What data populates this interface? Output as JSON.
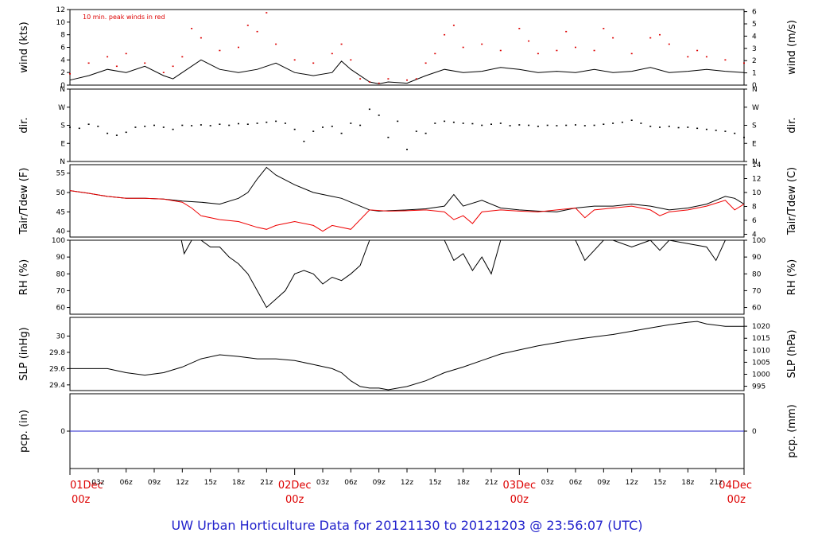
{
  "figure": {
    "caption": "UW Urban Horticulture Data for 20121130  to  20121203 @ 23:56:07  (UTC)",
    "colors": {
      "caption": "#2222cc",
      "date_labels": "#dd0000",
      "peak": "#dd0000",
      "dew": "#ee0000",
      "pcp": "#2222cc",
      "line": "#000000"
    }
  },
  "chart_data": [
    {
      "id": "wind",
      "type": "line",
      "ylabel": "wind (kts)",
      "ylabel_right": "wind (m/s)",
      "annotation": "10 min. peak winds in red",
      "ylim": [
        0,
        12
      ],
      "yticks": [
        0,
        2,
        4,
        6,
        8,
        10,
        12
      ],
      "right_ylim": [
        0,
        6.17
      ],
      "right_yticks": [
        0,
        1,
        2,
        3,
        4,
        5,
        6
      ],
      "series": [
        {
          "style": "line",
          "color": "#000000",
          "x": [
            0,
            2,
            4,
            6,
            8,
            10,
            11,
            12,
            14,
            16,
            18,
            20,
            22,
            24,
            26,
            28,
            29,
            30,
            32,
            33,
            34,
            36,
            38,
            40,
            42,
            44,
            46,
            48,
            50,
            52,
            54,
            56,
            58,
            60,
            62,
            64,
            66,
            68,
            70,
            72
          ],
          "y": [
            0.8,
            1.5,
            2.5,
            2.0,
            3.0,
            1.5,
            1.0,
            2.0,
            4.0,
            2.5,
            2.0,
            2.5,
            3.5,
            2.0,
            1.5,
            2.0,
            3.8,
            2.5,
            0.5,
            0.2,
            0.5,
            0.3,
            1.5,
            2.5,
            2.0,
            2.2,
            2.8,
            2.5,
            2.0,
            2.2,
            2.0,
            2.5,
            2.0,
            2.2,
            2.8,
            2.0,
            2.2,
            2.5,
            2.2,
            2.0
          ]
        },
        {
          "style": "dots",
          "color": "#dd0000",
          "x": [
            0,
            2,
            4,
            5,
            6,
            8,
            10,
            11,
            12,
            13,
            14,
            16,
            18,
            19,
            20,
            21,
            22,
            24,
            26,
            28,
            29,
            30,
            31,
            32,
            33,
            34,
            36,
            37,
            38,
            39,
            40,
            41,
            42,
            44,
            46,
            48,
            49,
            50,
            52,
            53,
            54,
            56,
            57,
            58,
            60,
            62,
            63,
            64,
            66,
            67,
            68,
            70,
            72
          ],
          "y": [
            1.8,
            3.5,
            4.5,
            3.0,
            5.0,
            3.5,
            2.0,
            3.0,
            4.5,
            9.0,
            7.5,
            5.5,
            6.0,
            9.5,
            8.5,
            11.5,
            6.5,
            4.0,
            3.5,
            5.0,
            6.5,
            4.0,
            1.0,
            0.5,
            0.3,
            1.0,
            0.8,
            1.0,
            3.5,
            5.0,
            8.0,
            9.5,
            6.0,
            6.5,
            5.5,
            9.0,
            7.0,
            5.0,
            5.5,
            8.5,
            6.0,
            5.5,
            9.0,
            7.5,
            5.0,
            7.5,
            8.0,
            6.5,
            4.5,
            5.5,
            4.5,
            4.0,
            3.5
          ]
        }
      ]
    },
    {
      "id": "dir",
      "type": "scatter",
      "ylabel": "dir.",
      "ylabel_right": "dir.",
      "ylim": [
        0,
        360
      ],
      "yticks": [
        0,
        90,
        180,
        270,
        360
      ],
      "ytick_labels": [
        "N",
        "E",
        "S",
        "W",
        "N"
      ],
      "series": [
        {
          "style": "dots",
          "color": "#000000",
          "x": [
            0,
            1,
            2,
            3,
            4,
            5,
            6,
            7,
            8,
            9,
            10,
            11,
            12,
            13,
            14,
            15,
            16,
            17,
            18,
            19,
            20,
            21,
            22,
            23,
            24,
            25,
            26,
            27,
            28,
            29,
            30,
            31,
            32,
            33,
            34,
            35,
            36,
            37,
            38,
            39,
            40,
            41,
            42,
            43,
            44,
            45,
            46,
            47,
            48,
            49,
            50,
            51,
            52,
            53,
            54,
            55,
            56,
            57,
            58,
            59,
            60,
            61,
            62,
            63,
            64,
            65,
            66,
            67,
            68,
            69,
            70,
            71,
            72
          ],
          "y": [
            170,
            165,
            185,
            175,
            140,
            130,
            145,
            170,
            175,
            180,
            170,
            160,
            180,
            178,
            182,
            178,
            185,
            180,
            188,
            185,
            190,
            195,
            200,
            190,
            160,
            100,
            150,
            170,
            175,
            140,
            190,
            180,
            260,
            230,
            120,
            200,
            60,
            150,
            140,
            190,
            200,
            195,
            190,
            188,
            180,
            185,
            190,
            178,
            182,
            180,
            175,
            180,
            178,
            180,
            182,
            178,
            180,
            185,
            190,
            195,
            205,
            190,
            175,
            170,
            175,
            168,
            170,
            165,
            160,
            155,
            150,
            140,
            120
          ]
        }
      ]
    },
    {
      "id": "temp",
      "type": "line",
      "ylabel": "Tair/Tdew (F)",
      "ylabel_right": "Tair/Tdew (C)",
      "ylim": [
        38.5,
        57.2
      ],
      "yticks": [
        40,
        45,
        50,
        55
      ],
      "right_ylim": [
        3.6,
        14
      ],
      "right_yticks": [
        4,
        6,
        8,
        10,
        12,
        14
      ],
      "series": [
        {
          "style": "line",
          "color": "#000000",
          "x": [
            0,
            2,
            4,
            6,
            8,
            10,
            12,
            14,
            16,
            18,
            19,
            20,
            21,
            22,
            24,
            26,
            28,
            29,
            30,
            32,
            33,
            34,
            36,
            38,
            40,
            41,
            42,
            44,
            46,
            48,
            50,
            52,
            54,
            56,
            58,
            60,
            62,
            64,
            66,
            68,
            70,
            71,
            72
          ],
          "y": [
            50.5,
            49.8,
            49.0,
            48.5,
            48.5,
            48.3,
            47.8,
            47.5,
            47.0,
            48.5,
            50.0,
            53.5,
            56.5,
            54.5,
            52.0,
            50.0,
            49.0,
            48.5,
            47.5,
            45.5,
            45.2,
            45.3,
            45.5,
            45.8,
            46.5,
            49.5,
            46.5,
            48.0,
            46.0,
            45.5,
            45.2,
            45.0,
            46.0,
            46.5,
            46.5,
            47.0,
            46.5,
            45.5,
            46.0,
            47.0,
            49.0,
            48.5,
            47.0
          ]
        },
        {
          "style": "line",
          "color": "#ee0000",
          "x": [
            0,
            2,
            4,
            6,
            8,
            10,
            12,
            13,
            14,
            16,
            18,
            20,
            21,
            22,
            24,
            26,
            27,
            28,
            30,
            32,
            34,
            36,
            38,
            40,
            41,
            42,
            43,
            44,
            46,
            48,
            50,
            52,
            54,
            55,
            56,
            58,
            60,
            62,
            63,
            64,
            66,
            68,
            70,
            71,
            72
          ],
          "y": [
            50.5,
            49.8,
            49.0,
            48.5,
            48.5,
            48.3,
            47.5,
            46.0,
            44.0,
            43.0,
            42.5,
            41.0,
            40.5,
            41.5,
            42.5,
            41.5,
            40.0,
            41.5,
            40.5,
            45.5,
            45.2,
            45.3,
            45.5,
            45.0,
            43.0,
            44.0,
            42.0,
            45.0,
            45.5,
            45.2,
            45.0,
            45.5,
            46.0,
            43.5,
            45.5,
            46.0,
            46.5,
            45.5,
            44.0,
            45.0,
            45.5,
            46.5,
            48.0,
            45.5,
            47.0
          ]
        }
      ]
    },
    {
      "id": "rh",
      "type": "line",
      "ylabel": "RH (%)",
      "ylabel_right": "RH (%)",
      "ylim": [
        56,
        100
      ],
      "yticks": [
        60,
        70,
        80,
        90,
        100
      ],
      "right_yticks": [
        60,
        70,
        80,
        90,
        100
      ],
      "series": [
        {
          "style": "line",
          "color": "#000000",
          "x": [
            0,
            2,
            4,
            6,
            8,
            10,
            11.9,
            12.2,
            13,
            14,
            15,
            16,
            17,
            18,
            19,
            20,
            21,
            22,
            23,
            24,
            25,
            26,
            27,
            28,
            29,
            30,
            31,
            32,
            33,
            34,
            36,
            38,
            39,
            40,
            41,
            42,
            43,
            44,
            45,
            46,
            48,
            50,
            52,
            54,
            55,
            56,
            57,
            58,
            60,
            62,
            63,
            64,
            66,
            68,
            69,
            70,
            71,
            72
          ],
          "y": [
            100,
            100,
            100,
            100,
            100,
            100,
            100,
            92,
            100,
            100,
            96,
            96,
            90,
            86,
            80,
            70,
            60,
            65,
            70,
            80,
            82,
            80,
            74,
            78,
            76,
            80,
            85,
            100,
            100,
            100,
            100,
            100,
            100,
            100,
            88,
            92,
            82,
            90,
            80,
            100,
            100,
            100,
            100,
            100,
            88,
            94,
            100,
            100,
            96,
            100,
            94,
            100,
            98,
            96,
            88,
            100,
            100,
            100
          ]
        }
      ]
    },
    {
      "id": "slp",
      "type": "line",
      "ylabel": "SLP (inHg)",
      "ylabel_right": "SLP (hPa)",
      "ylim": [
        29.33,
        30.23
      ],
      "yticks": [
        29.4,
        29.6,
        29.8,
        30.0
      ],
      "right_ylim": [
        993.2,
        1023.7
      ],
      "right_yticks": [
        995,
        1000,
        1005,
        1010,
        1015,
        1020
      ],
      "series": [
        {
          "style": "line",
          "color": "#000000",
          "x": [
            0,
            2,
            4,
            6,
            8,
            10,
            12,
            14,
            16,
            18,
            20,
            22,
            24,
            26,
            28,
            29,
            30,
            31,
            32,
            33,
            34,
            36,
            38,
            40,
            42,
            44,
            46,
            48,
            50,
            52,
            54,
            56,
            58,
            60,
            62,
            64,
            66,
            67,
            68,
            70,
            72
          ],
          "y": [
            29.6,
            29.6,
            29.6,
            29.55,
            29.52,
            29.55,
            29.62,
            29.72,
            29.77,
            29.75,
            29.72,
            29.72,
            29.7,
            29.65,
            29.6,
            29.55,
            29.45,
            29.38,
            29.36,
            29.36,
            29.34,
            29.38,
            29.45,
            29.55,
            29.62,
            29.7,
            29.78,
            29.83,
            29.88,
            29.92,
            29.96,
            29.99,
            30.02,
            30.06,
            30.1,
            30.14,
            30.17,
            30.18,
            30.15,
            30.12,
            30.12
          ]
        }
      ]
    },
    {
      "id": "pcp",
      "type": "line",
      "ylabel": "pcp. (in)",
      "ylabel_right": "pcp. (mm)",
      "ylim": [
        -1,
        1
      ],
      "yticks": [
        0
      ],
      "right_yticks": [
        0
      ],
      "series": [
        {
          "style": "line",
          "color": "#2222cc",
          "x": [
            0,
            72
          ],
          "y": [
            0,
            0
          ]
        }
      ]
    }
  ],
  "x_axis": {
    "xlim": [
      0,
      72
    ],
    "major_ticks": [
      {
        "x": 0,
        "date": "01Dec",
        "hour": "00z"
      },
      {
        "x": 24,
        "date": "02Dec",
        "hour": "00z"
      },
      {
        "x": 48,
        "date": "03Dec",
        "hour": "00z"
      },
      {
        "x": 72,
        "date": "04Dec",
        "hour": "00z"
      }
    ],
    "minor_ticks": [
      {
        "x": 3,
        "label": "03z"
      },
      {
        "x": 6,
        "label": "06z"
      },
      {
        "x": 9,
        "label": "09z"
      },
      {
        "x": 12,
        "label": "12z"
      },
      {
        "x": 15,
        "label": "15z"
      },
      {
        "x": 18,
        "label": "18z"
      },
      {
        "x": 21,
        "label": "21z"
      },
      {
        "x": 27,
        "label": "03z"
      },
      {
        "x": 30,
        "label": "06z"
      },
      {
        "x": 33,
        "label": "09z"
      },
      {
        "x": 36,
        "label": "12z"
      },
      {
        "x": 39,
        "label": "15z"
      },
      {
        "x": 42,
        "label": "18z"
      },
      {
        "x": 45,
        "label": "21z"
      },
      {
        "x": 51,
        "label": "03z"
      },
      {
        "x": 54,
        "label": "06z"
      },
      {
        "x": 57,
        "label": "09z"
      },
      {
        "x": 60,
        "label": "12z"
      },
      {
        "x": 63,
        "label": "15z"
      },
      {
        "x": 66,
        "label": "18z"
      },
      {
        "x": 69,
        "label": "21z"
      }
    ]
  }
}
